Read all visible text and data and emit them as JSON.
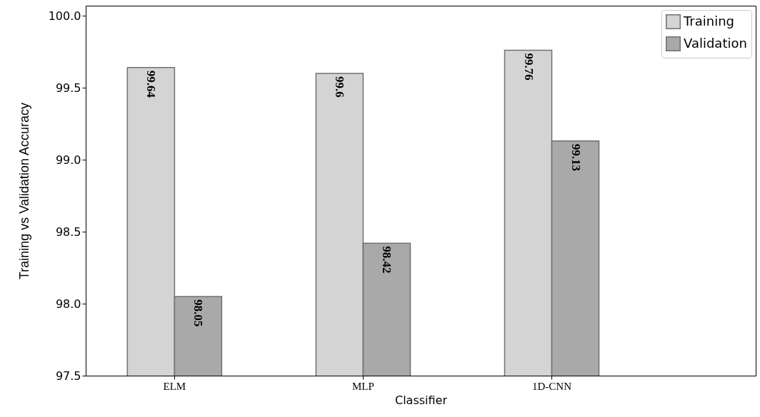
{
  "chart_data": {
    "type": "bar",
    "xlabel": "Classifier",
    "ylabel": "Training vs Validation Accuracy",
    "categories": [
      "ELM",
      "MLP",
      "1D-CNN"
    ],
    "series": [
      {
        "name": "Training",
        "color": "#d4d4d4",
        "values": [
          99.64,
          99.6,
          99.76
        ]
      },
      {
        "name": "Validation",
        "color": "#a9a9a9",
        "values": [
          98.05,
          98.42,
          99.13
        ]
      }
    ],
    "ylim": [
      97.5,
      100.07
    ],
    "yticks": [
      {
        "value": 97.5,
        "label": "97.5"
      },
      {
        "value": 98,
        "label": "98.0"
      },
      {
        "value": 98.5,
        "label": "98.5"
      },
      {
        "value": 99,
        "label": "99.0"
      },
      {
        "value": 99.5,
        "label": "99.5"
      },
      {
        "value": 100,
        "label": "100.0"
      }
    ],
    "data_labels": true,
    "grid": false,
    "legend": "top right"
  }
}
